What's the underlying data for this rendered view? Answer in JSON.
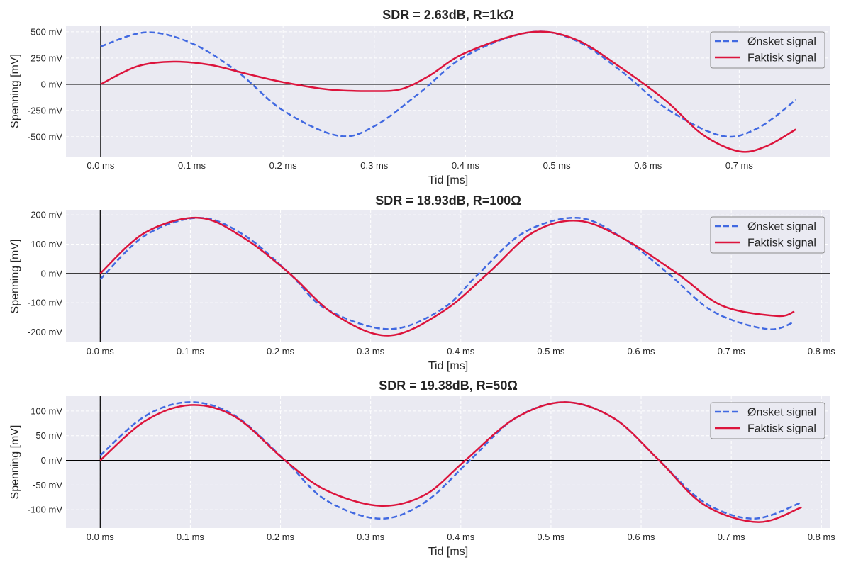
{
  "colors": {
    "desired": "#4169e1",
    "actual": "#dc143c",
    "plot_bg": "#eaeaf2",
    "grid": "#ffffff"
  },
  "chart_data": [
    {
      "type": "line",
      "title": "SDR = 2.63dB, R=1kΩ",
      "xlabel": "Tid [ms]",
      "ylabel": "Spenning [mV]",
      "xlim": [
        -0.038,
        0.8
      ],
      "ylim": [
        -690,
        560
      ],
      "xticks": [
        0.0,
        0.1,
        0.2,
        0.3,
        0.4,
        0.5,
        0.6,
        0.7
      ],
      "xtick_labels": [
        "0.0 ms",
        "0.1 ms",
        "0.2 ms",
        "0.3 ms",
        "0.4 ms",
        "0.5 ms",
        "0.6 ms",
        "0.7 ms"
      ],
      "yticks": [
        -500,
        -250,
        0,
        250,
        500
      ],
      "ytick_labels": [
        "-500 mV",
        "-250 mV",
        "0 mV",
        "250 mV",
        "500 mV"
      ],
      "grid": true,
      "legend": "upper right",
      "series": [
        {
          "name": "Ønsket signal",
          "style": "dashed",
          "x": [
            0.0,
            0.05,
            0.1,
            0.15,
            0.2,
            0.26,
            0.3,
            0.35,
            0.4,
            0.47,
            0.52,
            0.57,
            0.62,
            0.68,
            0.72,
            0.762
          ],
          "y": [
            360,
            495,
            390,
            120,
            -250,
            -490,
            -400,
            -80,
            270,
            495,
            420,
            130,
            -230,
            -490,
            -420,
            -150
          ]
        },
        {
          "name": "Faktisk signal",
          "style": "solid",
          "x": [
            0.0,
            0.04,
            0.08,
            0.12,
            0.16,
            0.2,
            0.25,
            0.3,
            0.33,
            0.36,
            0.4,
            0.47,
            0.52,
            0.57,
            0.62,
            0.66,
            0.7,
            0.73,
            0.762
          ],
          "y": [
            0,
            170,
            215,
            185,
            100,
            20,
            -50,
            -65,
            -45,
            80,
            300,
            495,
            430,
            160,
            -160,
            -480,
            -640,
            -590,
            -430
          ]
        }
      ]
    },
    {
      "type": "line",
      "title": "SDR = 18.93dB, R=100Ω",
      "xlabel": "Tid [ms]",
      "ylabel": "Spenning [mV]",
      "xlim": [
        -0.038,
        0.81
      ],
      "ylim": [
        -235,
        215
      ],
      "xticks": [
        0.0,
        0.1,
        0.2,
        0.3,
        0.4,
        0.5,
        0.6,
        0.7,
        0.8
      ],
      "xtick_labels": [
        "0.0 ms",
        "0.1 ms",
        "0.2 ms",
        "0.3 ms",
        "0.4 ms",
        "0.5 ms",
        "0.6 ms",
        "0.7 ms",
        "0.8 ms"
      ],
      "yticks": [
        -200,
        -100,
        0,
        100,
        200
      ],
      "ytick_labels": [
        "-200 mV",
        "-100 mV",
        "0 mV",
        "100 mV",
        "200 mV"
      ],
      "grid": true,
      "legend": "upper right",
      "series": [
        {
          "name": "Ønsket signal",
          "style": "dashed",
          "x": [
            0.0,
            0.05,
            0.11,
            0.16,
            0.21,
            0.25,
            0.32,
            0.38,
            0.42,
            0.47,
            0.53,
            0.58,
            0.63,
            0.68,
            0.74,
            0.77
          ],
          "y": [
            -20,
            130,
            190,
            130,
            0,
            -120,
            -190,
            -120,
            0,
            140,
            190,
            120,
            0,
            -130,
            -190,
            -165
          ]
        },
        {
          "name": "Faktisk signal",
          "style": "solid",
          "x": [
            0.0,
            0.05,
            0.11,
            0.16,
            0.21,
            0.26,
            0.32,
            0.38,
            0.43,
            0.48,
            0.53,
            0.58,
            0.64,
            0.69,
            0.75,
            0.77
          ],
          "y": [
            0,
            140,
            190,
            120,
            0,
            -140,
            -212,
            -130,
            0,
            140,
            180,
            120,
            0,
            -110,
            -145,
            -130
          ]
        }
      ]
    },
    {
      "type": "line",
      "title": "SDR = 19.38dB, R=50Ω",
      "xlabel": "Tid [ms]",
      "ylabel": "Spenning [mV]",
      "xlim": [
        -0.038,
        0.81
      ],
      "ylim": [
        -137,
        130
      ],
      "xticks": [
        0.0,
        0.1,
        0.2,
        0.3,
        0.4,
        0.5,
        0.6,
        0.7,
        0.8
      ],
      "xtick_labels": [
        "0.0 ms",
        "0.1 ms",
        "0.2 ms",
        "0.3 ms",
        "0.4 ms",
        "0.5 ms",
        "0.6 ms",
        "0.7 ms",
        "0.8 ms"
      ],
      "yticks": [
        -100,
        -50,
        0,
        50,
        100
      ],
      "ytick_labels": [
        "-100 mV",
        "-50 mV",
        "0 mV",
        "50 mV",
        "100 mV"
      ],
      "grid": true,
      "legend": "upper right",
      "series": [
        {
          "name": "Ønsket signal",
          "style": "dashed",
          "x": [
            0.0,
            0.05,
            0.1,
            0.15,
            0.205,
            0.25,
            0.31,
            0.36,
            0.41,
            0.46,
            0.515,
            0.57,
            0.62,
            0.67,
            0.725,
            0.778
          ],
          "y": [
            10,
            90,
            118,
            90,
            0,
            -80,
            -118,
            -85,
            0,
            85,
            118,
            85,
            0,
            -85,
            -118,
            -85
          ]
        },
        {
          "name": "Faktisk signal",
          "style": "solid",
          "x": [
            0.0,
            0.05,
            0.1,
            0.15,
            0.205,
            0.25,
            0.31,
            0.36,
            0.405,
            0.46,
            0.515,
            0.57,
            0.62,
            0.67,
            0.73,
            0.778
          ],
          "y": [
            0,
            80,
            112,
            88,
            0,
            -60,
            -92,
            -70,
            0,
            85,
            118,
            85,
            0,
            -90,
            -125,
            -95
          ]
        }
      ]
    }
  ]
}
